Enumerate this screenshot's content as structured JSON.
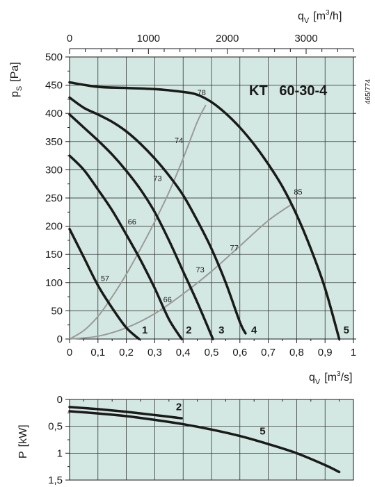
{
  "chart_data": [
    {
      "type": "line",
      "title": "KT   60-30-4",
      "code": "465/774",
      "xlabel": "q",
      "xlabel_sub": "V",
      "xlabel_unit": "[m",
      "xlabel_unit_sup": "3",
      "xlabel_unit_end": "/s]",
      "x2label": "q",
      "x2label_sub": "V",
      "x2label_unit": "[m",
      "x2label_unit_sup": "3",
      "x2label_unit_end": "/h]",
      "ylabel": "p",
      "ylabel_sub": "S",
      "ylabel_unit": "[Pa]",
      "xlim": [
        0,
        1
      ],
      "ylim": [
        0,
        500
      ],
      "x_ticks": [
        "0",
        "0,1",
        "0,2",
        "0,3",
        "0,4",
        "0,5",
        "0,6",
        "0,7",
        "0,8",
        "0,9",
        "1"
      ],
      "y_ticks": [
        "0",
        "50",
        "100",
        "150",
        "200",
        "250",
        "300",
        "350",
        "400",
        "450",
        "500"
      ],
      "x2_ticks": [
        "0",
        "1000",
        "2000",
        "3000"
      ],
      "grid": true,
      "colors": {
        "background": "#d3e8e3",
        "curve": "#1a1a1a",
        "efficiency": "#9a9a9a"
      },
      "series": [
        {
          "name": "1",
          "x": [
            0,
            0.05,
            0.1,
            0.15,
            0.2,
            0.245
          ],
          "y": [
            195,
            145,
            95,
            55,
            20,
            0
          ]
        },
        {
          "name": "2",
          "x": [
            0,
            0.05,
            0.1,
            0.15,
            0.2,
            0.25,
            0.3,
            0.35,
            0.395
          ],
          "y": [
            325,
            300,
            265,
            228,
            185,
            140,
            90,
            35,
            0
          ]
        },
        {
          "name": "3",
          "x": [
            0,
            0.05,
            0.1,
            0.15,
            0.2,
            0.25,
            0.3,
            0.35,
            0.4,
            0.45,
            0.505
          ],
          "y": [
            398,
            375,
            352,
            327,
            298,
            265,
            225,
            175,
            120,
            65,
            0
          ]
        },
        {
          "name": "4",
          "x": [
            0,
            0.05,
            0.1,
            0.15,
            0.2,
            0.25,
            0.3,
            0.35,
            0.4,
            0.45,
            0.5,
            0.55,
            0.6,
            0.62
          ],
          "y": [
            428,
            410,
            398,
            385,
            368,
            346,
            320,
            290,
            255,
            210,
            160,
            100,
            30,
            10
          ]
        },
        {
          "name": "5",
          "x": [
            0,
            0.1,
            0.2,
            0.3,
            0.4,
            0.45,
            0.5,
            0.55,
            0.6,
            0.65,
            0.7,
            0.75,
            0.8,
            0.85,
            0.9,
            0.95
          ],
          "y": [
            455,
            447,
            445,
            443,
            438,
            433,
            420,
            400,
            375,
            345,
            310,
            270,
            220,
            160,
            90,
            0
          ]
        }
      ],
      "efficiency_lines": [
        {
          "x": [
            0,
            0.05,
            0.1,
            0.15,
            0.2,
            0.25,
            0.3,
            0.35,
            0.4,
            0.45,
            0.48
          ],
          "y": [
            0,
            15,
            40,
            75,
            115,
            160,
            208,
            260,
            320,
            385,
            415
          ]
        },
        {
          "x": [
            0,
            0.1,
            0.2,
            0.3,
            0.4,
            0.5,
            0.6,
            0.7,
            0.78
          ],
          "y": [
            0,
            5,
            20,
            45,
            80,
            120,
            165,
            210,
            238
          ]
        }
      ],
      "efficiency_labels": [
        {
          "text": "57",
          "x": 0.125,
          "y": 103
        },
        {
          "text": "66",
          "x": 0.22,
          "y": 203
        },
        {
          "text": "73",
          "x": 0.31,
          "y": 280
        },
        {
          "text": "74",
          "x": 0.385,
          "y": 347
        },
        {
          "text": "78",
          "x": 0.465,
          "y": 432
        },
        {
          "text": "66",
          "x": 0.345,
          "y": 65
        },
        {
          "text": "73",
          "x": 0.46,
          "y": 118
        },
        {
          "text": "77",
          "x": 0.58,
          "y": 157
        },
        {
          "text": "85",
          "x": 0.805,
          "y": 256
        }
      ],
      "curve_labels": [
        {
          "text": "1",
          "x": 0.265,
          "y": 10
        },
        {
          "text": "2",
          "x": 0.42,
          "y": 10
        },
        {
          "text": "3",
          "x": 0.535,
          "y": 10
        },
        {
          "text": "4",
          "x": 0.65,
          "y": 10
        },
        {
          "text": "5",
          "x": 0.975,
          "y": 10
        }
      ]
    },
    {
      "type": "line",
      "ylabel": "P",
      "ylabel_unit": "[kW]",
      "xlim": [
        0,
        1
      ],
      "ylim": [
        0,
        1.5
      ],
      "y_inverted": true,
      "y_ticks": [
        "0",
        "0,5",
        "1",
        "1,5"
      ],
      "grid": true,
      "series": [
        {
          "name": "2",
          "x": [
            0,
            0.1,
            0.2,
            0.3,
            0.395
          ],
          "y": [
            0.14,
            0.18,
            0.23,
            0.29,
            0.35
          ]
        },
        {
          "name": "5",
          "x": [
            0,
            0.1,
            0.2,
            0.3,
            0.4,
            0.5,
            0.6,
            0.7,
            0.8,
            0.9,
            0.95
          ],
          "y": [
            0.22,
            0.26,
            0.31,
            0.38,
            0.46,
            0.56,
            0.68,
            0.83,
            1.0,
            1.22,
            1.35
          ]
        }
      ],
      "curve_labels": [
        {
          "text": "2",
          "x": 0.385,
          "y": 0.2
        },
        {
          "text": "5",
          "x": 0.68,
          "y": 0.65
        }
      ]
    }
  ]
}
